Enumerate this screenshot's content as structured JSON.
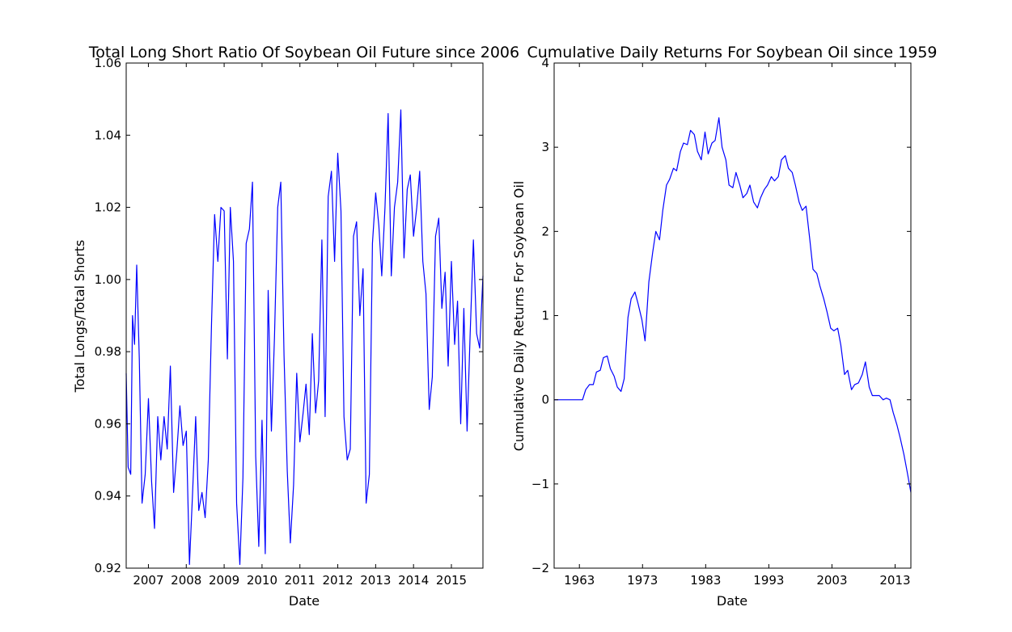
{
  "chart_data": [
    {
      "type": "line",
      "title": "Total Long Short Ratio Of Soybean Oil Future since 2006",
      "xlabel": "Date",
      "ylabel": "Total Longs/Total Shorts",
      "xlim": [
        "2006-06-01",
        "2015-11-01"
      ],
      "ylim": [
        0.92,
        1.06
      ],
      "xticks": [
        2007,
        2008,
        2009,
        2010,
        2011,
        2012,
        2013,
        2014,
        2015
      ],
      "yticks": [
        "0.92",
        "0.94",
        "0.96",
        "0.98",
        "1.00",
        "1.02",
        "1.04",
        "1.06"
      ],
      "grid": false,
      "color": "#0000ff",
      "series": [
        {
          "x": [
            "2006-06-01",
            "2006-06-20",
            "2006-07-15",
            "2006-08-01",
            "2006-08-20",
            "2006-09-10",
            "2006-10-05",
            "2006-11-01",
            "2006-12-01",
            "2007-01-01",
            "2007-02-01",
            "2007-03-01",
            "2007-04-01",
            "2007-05-01",
            "2007-06-01",
            "2007-07-01",
            "2007-08-01",
            "2007-09-01",
            "2007-10-01",
            "2007-11-01",
            "2007-12-01",
            "2008-01-01",
            "2008-02-01",
            "2008-03-01",
            "2008-04-01",
            "2008-05-01",
            "2008-06-01",
            "2008-07-01",
            "2008-08-01",
            "2008-09-01",
            "2008-10-01",
            "2008-11-01",
            "2008-12-01",
            "2009-01-01",
            "2009-02-01",
            "2009-03-01",
            "2009-04-01",
            "2009-05-01",
            "2009-06-01",
            "2009-07-01",
            "2009-08-01",
            "2009-09-01",
            "2009-10-01",
            "2009-11-01",
            "2009-12-01",
            "2010-01-01",
            "2010-02-01",
            "2010-03-01",
            "2010-04-01",
            "2010-05-01",
            "2010-06-01",
            "2010-07-01",
            "2010-08-01",
            "2010-09-01",
            "2010-10-01",
            "2010-11-01",
            "2010-12-01",
            "2011-01-01",
            "2011-02-01",
            "2011-03-01",
            "2011-04-01",
            "2011-05-01",
            "2011-06-01",
            "2011-07-01",
            "2011-08-01",
            "2011-09-01",
            "2011-10-01",
            "2011-11-01",
            "2011-12-01",
            "2012-01-01",
            "2012-02-01",
            "2012-03-01",
            "2012-04-01",
            "2012-05-01",
            "2012-06-01",
            "2012-07-01",
            "2012-08-01",
            "2012-09-01",
            "2012-10-01",
            "2012-11-01",
            "2012-12-01",
            "2013-01-01",
            "2013-02-01",
            "2013-03-01",
            "2013-04-01",
            "2013-05-01",
            "2013-06-01",
            "2013-07-01",
            "2013-08-01",
            "2013-09-01",
            "2013-10-01",
            "2013-11-01",
            "2013-12-01",
            "2014-01-01",
            "2014-02-01",
            "2014-03-01",
            "2014-04-01",
            "2014-05-01",
            "2014-06-01",
            "2014-07-01",
            "2014-08-01",
            "2014-09-01",
            "2014-10-01",
            "2014-11-01",
            "2014-12-01",
            "2015-01-01",
            "2015-02-01",
            "2015-03-01",
            "2015-04-01",
            "2015-05-01",
            "2015-06-01",
            "2015-07-01",
            "2015-08-01",
            "2015-09-01",
            "2015-10-01",
            "2015-11-01"
          ],
          "y": [
            0.974,
            0.948,
            0.946,
            0.99,
            0.982,
            1.004,
            0.978,
            0.938,
            0.946,
            0.967,
            0.944,
            0.931,
            0.962,
            0.95,
            0.962,
            0.953,
            0.976,
            0.941,
            0.952,
            0.965,
            0.954,
            0.958,
            0.921,
            0.94,
            0.962,
            0.936,
            0.941,
            0.934,
            0.95,
            0.988,
            1.018,
            1.005,
            1.02,
            1.019,
            0.978,
            1.02,
            1.005,
            0.938,
            0.921,
            0.945,
            1.01,
            1.014,
            1.027,
            0.951,
            0.926,
            0.961,
            0.924,
            0.997,
            0.958,
            0.984,
            1.02,
            1.027,
            0.979,
            0.947,
            0.927,
            0.943,
            0.974,
            0.955,
            0.963,
            0.971,
            0.957,
            0.985,
            0.963,
            0.972,
            1.011,
            0.962,
            1.023,
            1.03,
            1.005,
            1.035,
            1.019,
            0.962,
            0.95,
            0.953,
            1.012,
            1.016,
            0.99,
            1.003,
            0.938,
            0.946,
            1.01,
            1.024,
            1.015,
            1.001,
            1.02,
            1.046,
            1.001,
            1.02,
            1.027,
            1.047,
            1.006,
            1.025,
            1.029,
            1.012,
            1.02,
            1.03,
            1.005,
            0.996,
            0.964,
            0.973,
            1.012,
            1.017,
            0.992,
            1.002,
            0.976,
            1.005,
            0.982,
            0.994,
            0.96,
            0.992,
            0.958,
            0.985,
            1.011,
            0.985,
            0.981,
            1.001
          ]
        }
      ]
    },
    {
      "type": "line",
      "title": "Cumulative Daily Returns For Soybean Oil since 1959",
      "xlabel": "Date",
      "ylabel": "Cumulative Daily Returns For Soybean Oil",
      "xlim": [
        1959,
        2015.5
      ],
      "ylim": [
        -2,
        4
      ],
      "xticks": [
        1963,
        1973,
        1983,
        1993,
        2003,
        2013
      ],
      "yticks": [
        "−2",
        "−1",
        "0",
        "1",
        "2",
        "3",
        "4"
      ],
      "grid": false,
      "color": "#0000ff",
      "series": [
        {
          "x": [
            1959.0,
            1963.5,
            1964.0,
            1964.6,
            1965.2,
            1965.7,
            1966.3,
            1966.8,
            1967.4,
            1967.9,
            1968.5,
            1969.0,
            1969.6,
            1970.1,
            1970.7,
            1971.2,
            1971.8,
            1972.3,
            1972.9,
            1973.4,
            1974.0,
            1974.6,
            1975.1,
            1975.7,
            1976.2,
            1976.8,
            1977.3,
            1977.9,
            1978.4,
            1979.0,
            1979.5,
            1980.1,
            1980.6,
            1981.2,
            1981.7,
            1982.3,
            1982.9,
            1983.4,
            1984.0,
            1984.5,
            1985.1,
            1985.6,
            1986.2,
            1986.7,
            1987.3,
            1987.8,
            1988.4,
            1988.9,
            1989.5,
            1990.0,
            1990.6,
            1991.2,
            1991.7,
            1992.3,
            1992.8,
            1993.4,
            1993.9,
            1994.5,
            1995.0,
            1995.6,
            1996.1,
            1996.7,
            1997.2,
            1997.8,
            1998.3,
            1998.9,
            1999.5,
            2000.0,
            2000.6,
            2001.1,
            2001.7,
            2002.2,
            2002.8,
            2003.3,
            2003.9,
            2004.4,
            2005.0,
            2005.5,
            2006.1,
            2006.6,
            2007.2,
            2007.8,
            2008.3,
            2008.9,
            2009.4,
            2010.0,
            2010.5,
            2011.1,
            2011.6,
            2012.2,
            2012.7,
            2013.3,
            2013.8,
            2014.4,
            2014.9,
            2015.5
          ],
          "y": [
            0.0,
            0.0,
            0.12,
            0.18,
            0.18,
            0.33,
            0.35,
            0.5,
            0.52,
            0.37,
            0.28,
            0.15,
            0.1,
            0.25,
            0.98,
            1.2,
            1.28,
            1.14,
            0.95,
            0.7,
            1.4,
            1.75,
            2.0,
            1.9,
            2.25,
            2.55,
            2.62,
            2.75,
            2.72,
            2.95,
            3.05,
            3.03,
            3.2,
            3.15,
            2.95,
            2.85,
            3.18,
            2.92,
            3.05,
            3.08,
            3.35,
            3.0,
            2.85,
            2.55,
            2.52,
            2.7,
            2.55,
            2.4,
            2.45,
            2.55,
            2.35,
            2.28,
            2.4,
            2.5,
            2.55,
            2.65,
            2.6,
            2.65,
            2.85,
            2.9,
            2.75,
            2.7,
            2.55,
            2.35,
            2.25,
            2.3,
            1.9,
            1.55,
            1.5,
            1.35,
            1.2,
            1.05,
            0.85,
            0.82,
            0.85,
            0.65,
            0.3,
            0.35,
            0.12,
            0.18,
            0.2,
            0.3,
            0.45,
            0.15,
            0.05,
            0.05,
            0.05,
            0.0,
            0.02,
            0.0,
            -0.15,
            -0.3,
            -0.45,
            -0.65,
            -0.85,
            -1.1
          ]
        }
      ]
    }
  ]
}
